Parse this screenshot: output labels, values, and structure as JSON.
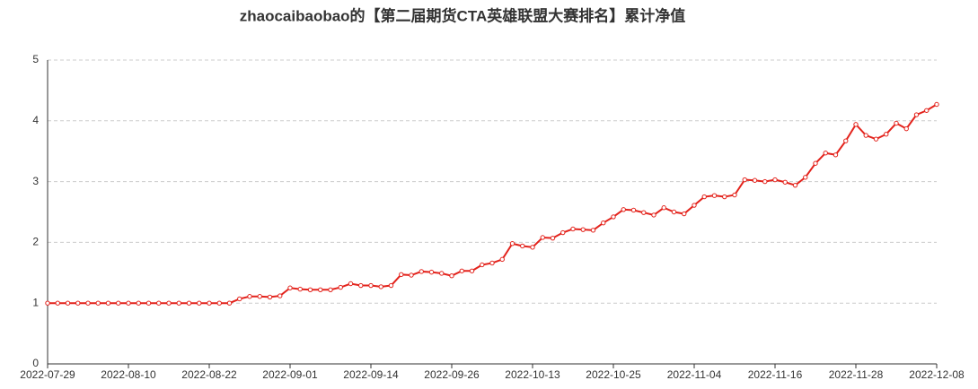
{
  "chart_data": {
    "type": "line",
    "title": "zhaocaibaobao的【第二届期货CTA英雄联盟大赛排名】累计净值",
    "categories": [
      "2022-07-29",
      null,
      null,
      null,
      null,
      null,
      null,
      null,
      "2022-08-10",
      null,
      null,
      null,
      null,
      null,
      null,
      null,
      "2022-08-22",
      null,
      null,
      null,
      null,
      null,
      null,
      null,
      "2022-09-01",
      null,
      null,
      null,
      null,
      null,
      null,
      null,
      "2022-09-14",
      null,
      null,
      null,
      null,
      null,
      null,
      null,
      "2022-09-26",
      null,
      null,
      null,
      null,
      null,
      null,
      null,
      "2022-10-13",
      null,
      null,
      null,
      null,
      null,
      null,
      null,
      "2022-10-25",
      null,
      null,
      null,
      null,
      null,
      null,
      null,
      "2022-11-04",
      null,
      null,
      null,
      null,
      null,
      null,
      null,
      "2022-11-16",
      null,
      null,
      null,
      null,
      null,
      null,
      null,
      "2022-11-28",
      null,
      null,
      null,
      null,
      null,
      null,
      null,
      "2022-12-08"
    ],
    "series": [
      {
        "name": "累计净值",
        "color": "#e3231c",
        "values": [
          1,
          1,
          1,
          1,
          1,
          1,
          1,
          1,
          1,
          1,
          1,
          1,
          1,
          1,
          1,
          1,
          1,
          1,
          1,
          1.07,
          1.11,
          1.11,
          1.1,
          1.12,
          1.25,
          1.23,
          1.22,
          1.22,
          1.22,
          1.26,
          1.32,
          1.29,
          1.29,
          1.27,
          1.29,
          1.47,
          1.46,
          1.52,
          1.51,
          1.49,
          1.45,
          1.53,
          1.53,
          1.63,
          1.66,
          1.72,
          1.98,
          1.94,
          1.92,
          2.08,
          2.07,
          2.16,
          2.22,
          2.21,
          2.2,
          2.32,
          2.42,
          2.54,
          2.53,
          2.49,
          2.45,
          2.57,
          2.5,
          2.47,
          2.61,
          2.75,
          2.77,
          2.75,
          2.78,
          3.03,
          3.02,
          3.0,
          3.03,
          2.99,
          2.94,
          3.07,
          3.3,
          3.47,
          3.44,
          3.67,
          3.94,
          3.76,
          3.7,
          3.78,
          3.96,
          3.87,
          4.1,
          4.17,
          4.27
        ]
      }
    ],
    "ylim": [
      0,
      5
    ],
    "yticks": [
      0,
      1,
      2,
      3,
      4,
      5
    ],
    "grid": true
  }
}
